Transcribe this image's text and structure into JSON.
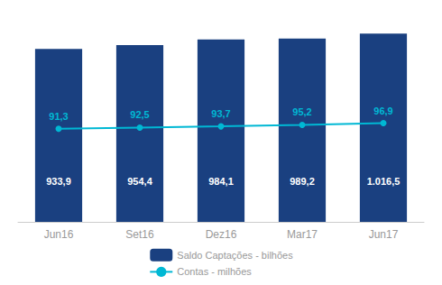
{
  "chart_data": {
    "type": "bar",
    "categories": [
      "Jun16",
      "Set16",
      "Dez16",
      "Mar17",
      "Jun17"
    ],
    "series": [
      {
        "name": "Saldo Captações - bilhões",
        "type": "bar",
        "color": "#1a4080",
        "values": [
          933.9,
          954.4,
          984.1,
          989.2,
          1016.5
        ],
        "value_labels": [
          "933,9",
          "954,4",
          "984,1",
          "989,2",
          "1.016,5"
        ]
      },
      {
        "name": "Contas - milhões",
        "type": "line",
        "color": "#00b8d4",
        "axis": "y2",
        "marker": "circle",
        "values": [
          91.3,
          92.5,
          93.7,
          95.2,
          96.9
        ],
        "value_labels": [
          "91,3",
          "92,5",
          "93,7",
          "95,2",
          "96,9"
        ]
      }
    ],
    "ylim": [
      0,
      1100
    ],
    "y2lim": [
      0,
      200
    ],
    "grid": false,
    "legend": "bottom",
    "data_labels": true,
    "tick_labels": "x"
  }
}
